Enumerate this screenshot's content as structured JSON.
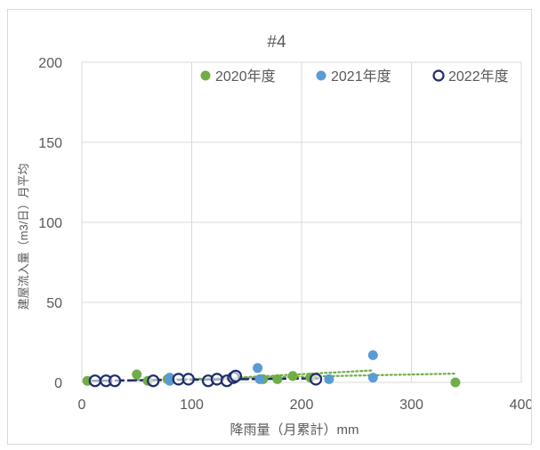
{
  "chart_data": {
    "type": "scatter",
    "title": "#4",
    "xlabel": "降雨量（月累計）mm",
    "ylabel": "建屋流入量（m3/日）月平均",
    "xlim": [
      0,
      400
    ],
    "ylim": [
      0,
      200
    ],
    "xticks": [
      "0",
      "100",
      "200",
      "300",
      "400"
    ],
    "yticks": [
      "0",
      "50",
      "100",
      "150",
      "200"
    ],
    "grid": true,
    "legend_position": "top",
    "series": [
      {
        "name": "2020年度",
        "marker": "filled-circle",
        "color": "#70ad47",
        "trend": "dotted",
        "points": [
          [
            5,
            1
          ],
          [
            50,
            5
          ],
          [
            60,
            1
          ],
          [
            78,
            2
          ],
          [
            165,
            2
          ],
          [
            178,
            2
          ],
          [
            192,
            4
          ],
          [
            208,
            3
          ],
          [
            340,
            0
          ]
        ]
      },
      {
        "name": "2021年度",
        "marker": "filled-circle",
        "color": "#5b9bd5",
        "trend": "none",
        "points": [
          [
            80,
            3
          ],
          [
            80,
            1
          ],
          [
            160,
            9
          ],
          [
            162,
            2
          ],
          [
            225,
            2
          ],
          [
            265,
            17
          ],
          [
            265,
            3
          ]
        ]
      },
      {
        "name": "2022年度",
        "marker": "open-circle",
        "color": "#1f2d6b",
        "trend": "dashed",
        "points": [
          [
            12,
            1
          ],
          [
            22,
            1
          ],
          [
            30,
            1
          ],
          [
            65,
            1
          ],
          [
            88,
            2
          ],
          [
            97,
            2
          ],
          [
            115,
            1
          ],
          [
            123,
            2
          ],
          [
            132,
            1
          ],
          [
            138,
            3
          ],
          [
            140,
            4
          ],
          [
            213,
            2
          ]
        ]
      }
    ],
    "trendlines": [
      {
        "series": "2020年度",
        "style": "dotted",
        "color": "#70ad47",
        "from": [
          50,
          1.5
        ],
        "to": [
          340,
          5.5
        ]
      },
      {
        "series": "2020年度",
        "style": "dotted",
        "color": "#70ad47",
        "from": [
          100,
          1.5
        ],
        "to": [
          265,
          7.5
        ]
      },
      {
        "series": "2022年度",
        "style": "dashed",
        "color": "#1f2d6b",
        "from": [
          8,
          1
        ],
        "to": [
          215,
          2.5
        ]
      }
    ]
  }
}
